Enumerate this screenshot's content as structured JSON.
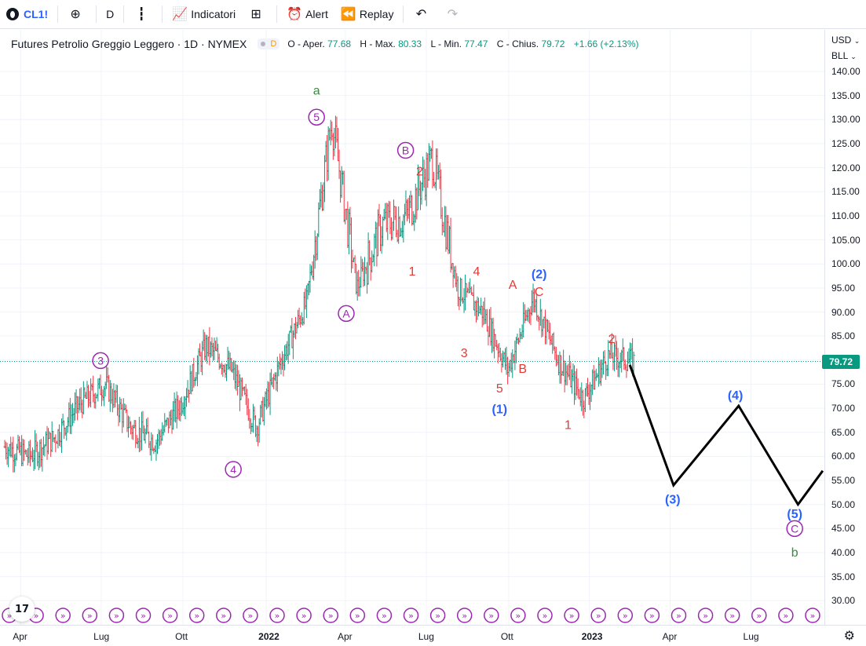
{
  "toolbar": {
    "symbol": "CL1!",
    "interval": "D",
    "indicators_label": "Indicatori",
    "alert_label": "Alert",
    "replay_label": "Replay"
  },
  "legend": {
    "title": "Futures Petrolio Greggio Leggero · 1D · NYMEX",
    "badge": "D",
    "o_label": "O - Aper.",
    "o_value": "77.68",
    "h_label": "H - Max.",
    "h_value": "80.33",
    "l_label": "L - Min.",
    "l_value": "77.47",
    "c_label": "C - Chius.",
    "c_value": "79.72",
    "change": "+1.66 (+2.13%)"
  },
  "price_axis": {
    "currency": "USD",
    "unit": "BLL",
    "ticks": [
      "140.00",
      "135.00",
      "130.00",
      "125.00",
      "120.00",
      "115.00",
      "110.00",
      "105.00",
      "100.00",
      "95.00",
      "90.00",
      "85.00",
      "80.00",
      "75.00",
      "70.00",
      "65.00",
      "60.00",
      "55.00",
      "50.00",
      "45.00",
      "40.00",
      "35.00",
      "30.00"
    ],
    "current_price": "79.72"
  },
  "time_axis": {
    "labels": [
      "Apr",
      "Lug",
      "Ott",
      "2022",
      "Apr",
      "Lug",
      "Ott",
      "2023",
      "Apr",
      "Lug"
    ]
  },
  "colors": {
    "up": "#089981",
    "down": "#f23645",
    "purple": "#9c27b0",
    "blue": "#2962ff",
    "red": "#e53935",
    "green": "#388e3c"
  },
  "chart_data": {
    "type": "candlestick",
    "title": "Futures Petrolio Greggio Leggero · 1D · NYMEX",
    "ylim": [
      27,
      144
    ],
    "x_ticks": [
      "Apr",
      "Lug",
      "Ott",
      "2022",
      "Apr",
      "Lug",
      "Ott",
      "2023",
      "Apr",
      "Lug"
    ],
    "price_path": [
      {
        "x": "2021-03",
        "y": 62
      },
      {
        "x": "2021-04",
        "y": 60
      },
      {
        "x": "2021-05",
        "y": 64
      },
      {
        "x": "2021-06",
        "y": 71
      },
      {
        "x": "2021-07",
        "y": 75
      },
      {
        "x": "2021-08",
        "y": 66
      },
      {
        "x": "2021-08b",
        "y": 63
      },
      {
        "x": "2021-09",
        "y": 71
      },
      {
        "x": "2021-10",
        "y": 83
      },
      {
        "x": "2021-11",
        "y": 78
      },
      {
        "x": "2021-12",
        "y": 66
      },
      {
        "x": "2022-01",
        "y": 80
      },
      {
        "x": "2022-02",
        "y": 92
      },
      {
        "x": "2022-03",
        "y": 130
      },
      {
        "x": "2022-03b",
        "y": 95
      },
      {
        "x": "2022-04",
        "y": 108
      },
      {
        "x": "2022-05",
        "y": 110
      },
      {
        "x": "2022-06",
        "y": 122
      },
      {
        "x": "2022-07",
        "y": 95
      },
      {
        "x": "2022-08",
        "y": 90
      },
      {
        "x": "2022-09",
        "y": 78
      },
      {
        "x": "2022-10",
        "y": 93
      },
      {
        "x": "2022-11",
        "y": 80
      },
      {
        "x": "2022-12",
        "y": 72
      },
      {
        "x": "2023-01",
        "y": 81
      },
      {
        "x": "2023-02",
        "y": 79.72
      }
    ],
    "projection": [
      {
        "x": "2023-02",
        "y": 79
      },
      {
        "x": "2023-04",
        "y": 54
      },
      {
        "x": "2023-06",
        "y": 70.5
      },
      {
        "x": "2023-09",
        "y": 50
      },
      {
        "x": "2023-10",
        "y": 57
      }
    ],
    "current_price": 79.72
  },
  "wave_labels": [
    {
      "text": "a",
      "price": 136,
      "t": 0.384,
      "color": "green",
      "circle": false
    },
    {
      "text": "5",
      "price": 130.5,
      "t": 0.384,
      "color": "purple",
      "circle": true
    },
    {
      "text": "3",
      "price": 79.9,
      "t": 0.122,
      "color": "purple",
      "circle": true
    },
    {
      "text": "4",
      "price": 57.3,
      "t": 0.283,
      "color": "purple",
      "circle": true
    },
    {
      "text": "A",
      "price": 89.7,
      "t": 0.42,
      "color": "purple",
      "circle": true
    },
    {
      "text": "B",
      "price": 123.6,
      "t": 0.492,
      "color": "purple",
      "circle": true
    },
    {
      "text": "2",
      "price": 119.2,
      "t": 0.509,
      "color": "red",
      "circle": false
    },
    {
      "text": "1",
      "price": 98.4,
      "t": 0.5,
      "color": "red",
      "circle": false
    },
    {
      "text": "4",
      "price": 98.4,
      "t": 0.578,
      "color": "red",
      "circle": false
    },
    {
      "text": "3",
      "price": 81.4,
      "t": 0.563,
      "color": "red",
      "circle": false
    },
    {
      "text": "5",
      "price": 74.1,
      "t": 0.606,
      "color": "red",
      "circle": false
    },
    {
      "text": "(1)",
      "price": 69.8,
      "t": 0.606,
      "color": "blue",
      "circle": false
    },
    {
      "text": "A",
      "price": 95.6,
      "t": 0.622,
      "color": "red",
      "circle": false
    },
    {
      "text": "B",
      "price": 78.2,
      "t": 0.634,
      "color": "red",
      "circle": false
    },
    {
      "text": "(2)",
      "price": 97.8,
      "t": 0.654,
      "color": "blue",
      "circle": false
    },
    {
      "text": "C",
      "price": 94.2,
      "t": 0.654,
      "color": "red",
      "circle": false
    },
    {
      "text": "2",
      "price": 84.4,
      "t": 0.742,
      "color": "red",
      "circle": false
    },
    {
      "text": "1",
      "price": 66.5,
      "t": 0.689,
      "color": "red",
      "circle": false
    },
    {
      "text": "(4)",
      "price": 72.6,
      "t": 0.892,
      "color": "blue",
      "circle": false
    },
    {
      "text": "(3)",
      "price": 51.0,
      "t": 0.816,
      "color": "blue",
      "circle": false
    },
    {
      "text": "(5)",
      "price": 48.0,
      "t": 0.964,
      "color": "blue",
      "circle": false
    },
    {
      "text": "C",
      "price": 45.0,
      "t": 0.964,
      "color": "purple",
      "circle": true
    },
    {
      "text": "b",
      "price": 40.0,
      "t": 0.964,
      "color": "green",
      "circle": false
    }
  ]
}
